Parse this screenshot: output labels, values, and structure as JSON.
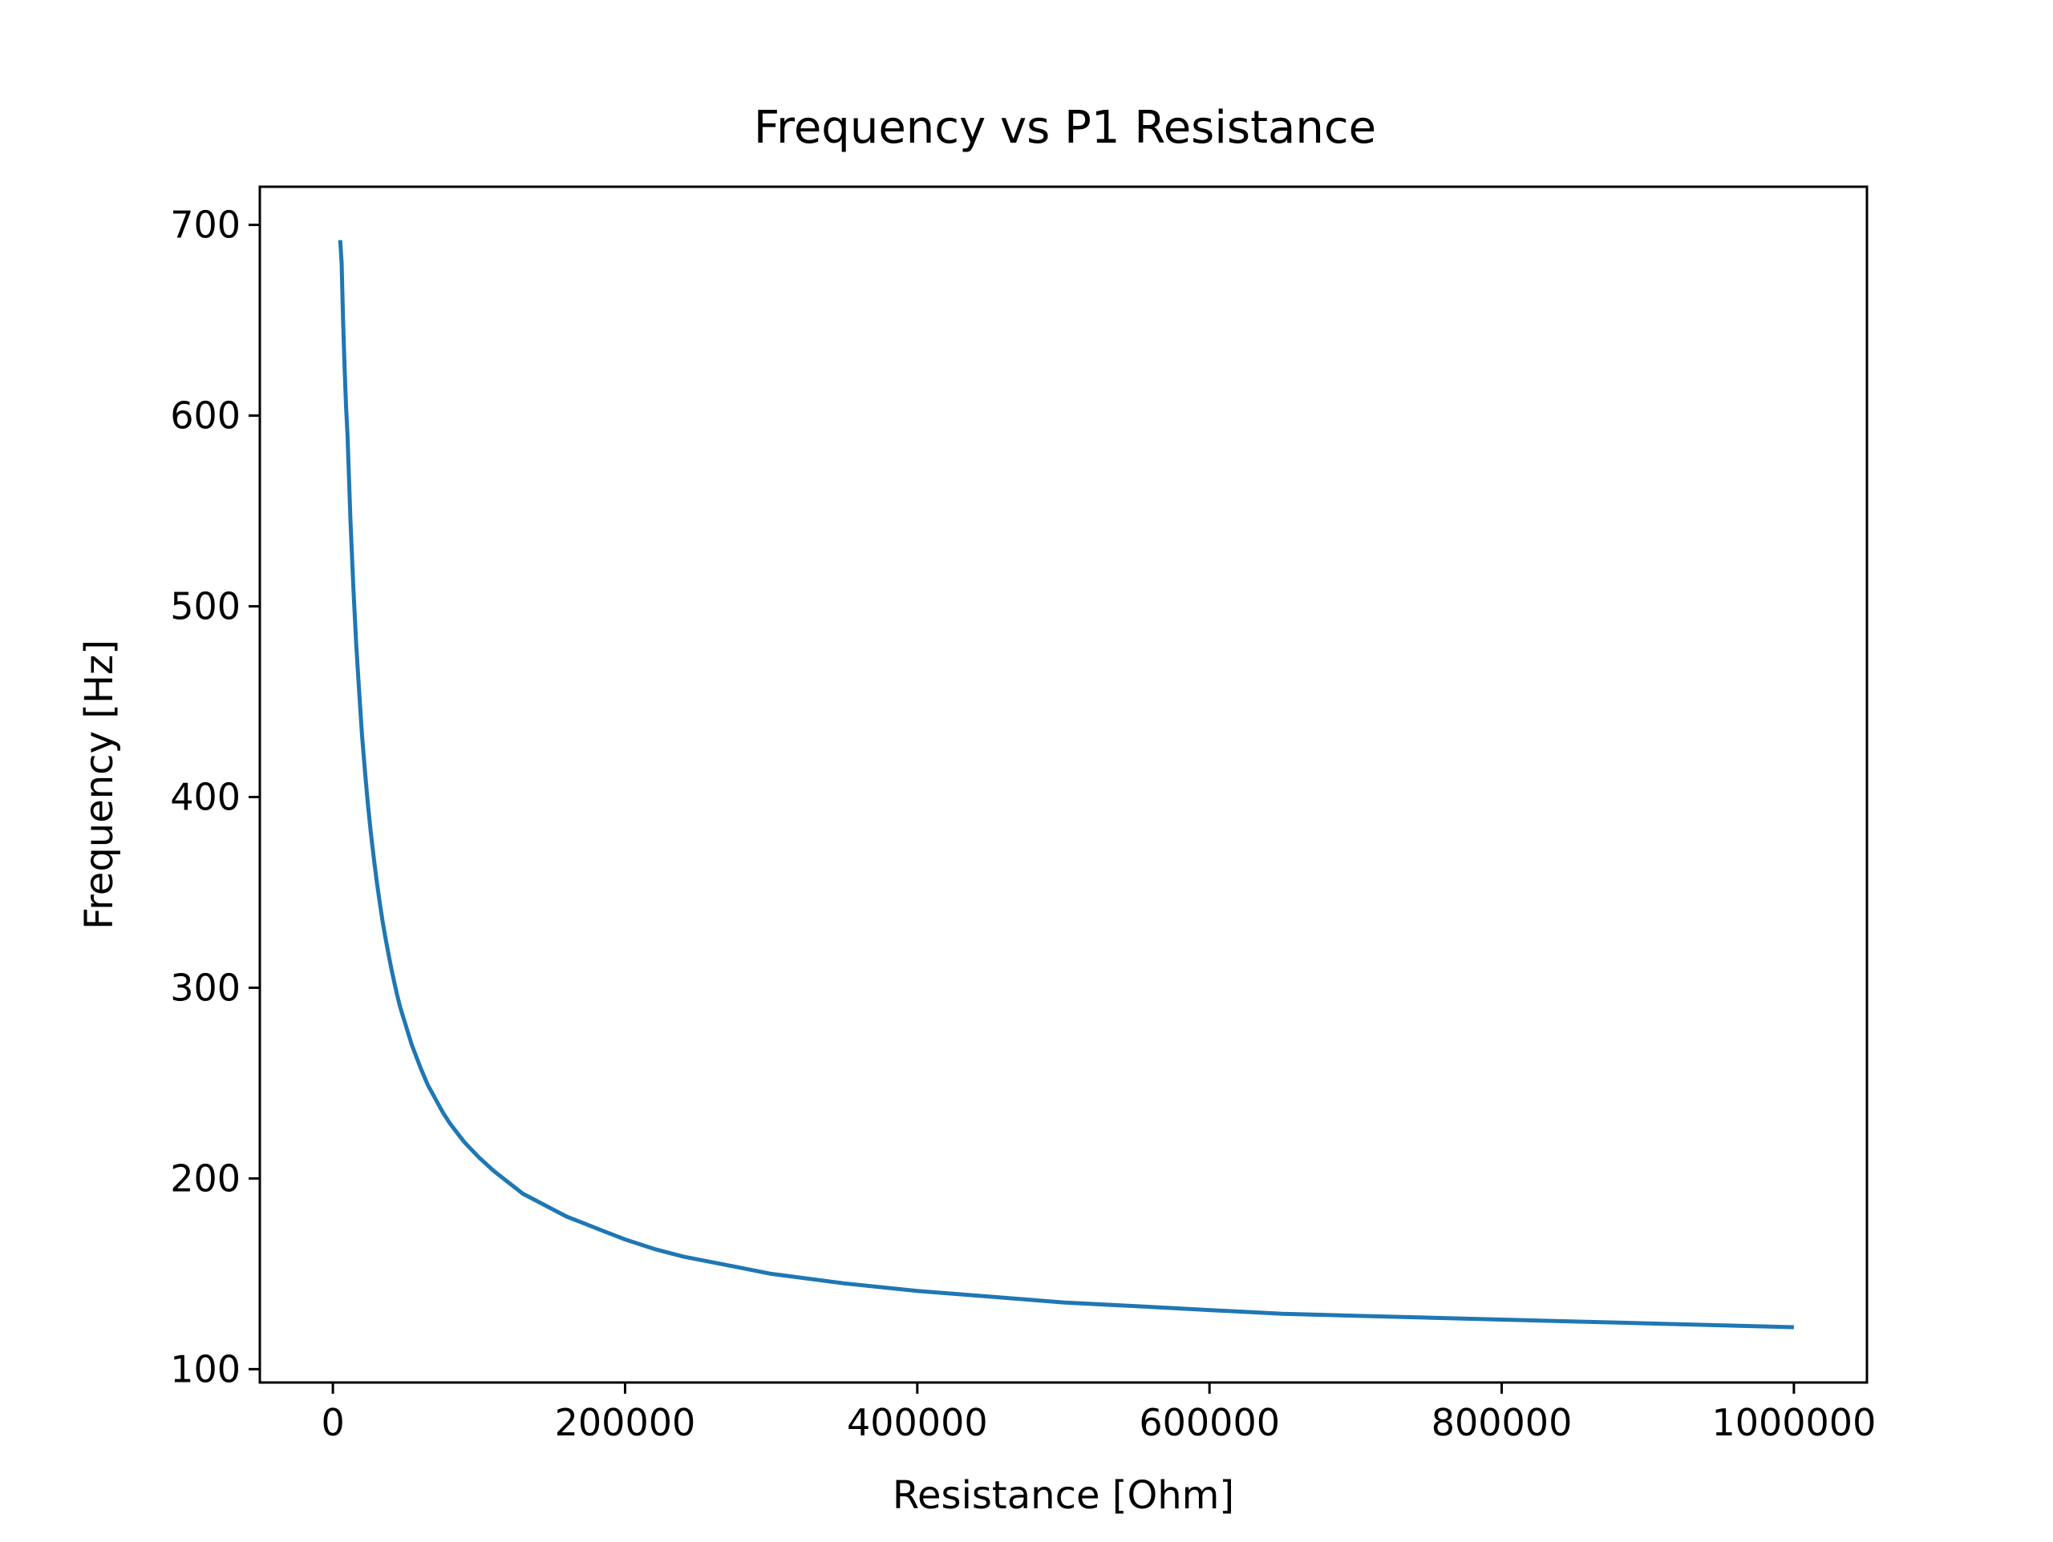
{
  "chart_data": {
    "type": "line",
    "title": "Frequency vs P1 Resistance",
    "xlabel": "Resistance [Ohm]",
    "ylabel": "Frequency [Hz]",
    "xlim": [
      -50000,
      1050000
    ],
    "ylim": [
      93,
      720
    ],
    "xticks": [
      0,
      200000,
      400000,
      600000,
      800000,
      1000000
    ],
    "xtick_labels": [
      "0",
      "200000",
      "400000",
      "600000",
      "800000",
      "1000000"
    ],
    "yticks": [
      100,
      200,
      300,
      400,
      500,
      600,
      700
    ],
    "ytick_labels": [
      "100",
      "200",
      "300",
      "400",
      "500",
      "600",
      "700"
    ],
    "grid": false,
    "line_color": "#1f77b4",
    "series": [
      {
        "x": [
          5000,
          6000,
          7000,
          8000,
          9000,
          10000,
          12000,
          14000,
          16000,
          18000,
          20000,
          22000,
          24000,
          26000,
          28000,
          30000,
          32000,
          34000,
          36000,
          38000,
          40000,
          42000,
          44000,
          46000,
          48000,
          50000,
          52000,
          54000,
          56000,
          58000,
          60000,
          65000,
          70000,
          75000,
          80000,
          85000,
          90000,
          95000,
          100000,
          110000,
          120000,
          130000,
          140000,
          150000,
          160000,
          170000,
          180000,
          190000,
          200000,
          220000,
          240000,
          260000,
          280000,
          300000,
          350000,
          400000,
          450000,
          500000,
          550000,
          600000,
          650000,
          700000,
          750000,
          800000,
          850000,
          900000,
          950000,
          1000000
        ],
        "y": [
          692,
          680,
          650,
          625,
          605,
          590,
          545,
          510,
          480,
          455,
          432,
          413,
          396,
          381,
          368,
          356,
          345,
          335,
          326,
          318,
          310,
          303,
          296,
          290,
          285,
          280,
          275,
          270,
          266,
          262,
          258,
          249,
          242,
          235,
          229,
          224,
          219,
          215,
          211,
          204,
          198,
          192,
          188,
          184,
          180,
          177,
          174,
          171,
          168,
          163,
          159,
          156,
          153,
          150,
          145,
          141,
          138,
          135,
          133,
          131,
          129,
          128,
          127,
          126,
          125,
          124,
          123,
          122
        ]
      }
    ]
  }
}
